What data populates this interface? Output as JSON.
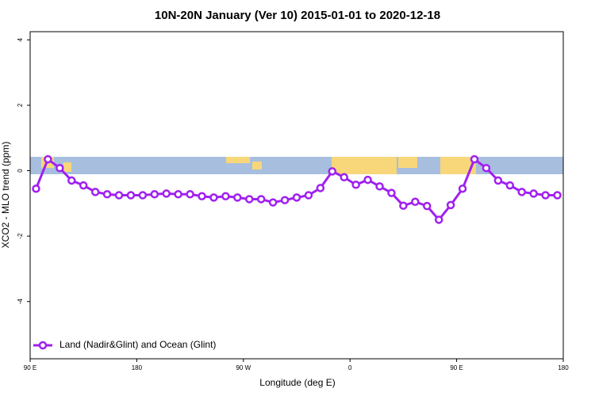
{
  "chart_data": {
    "type": "line",
    "title": "10N-20N January (Ver 10)   2015-01-01 to 2020-12-18",
    "x_label": "Longitude (deg E)",
    "y_label": "XCO2 - MLO trend (ppm)",
    "x": [
      95,
      105,
      115,
      125,
      135,
      145,
      155,
      165,
      175,
      185,
      195,
      205,
      215,
      225,
      235,
      245,
      255,
      265,
      275,
      285,
      295,
      305,
      315,
      325,
      335,
      345,
      355,
      365,
      375,
      385,
      395,
      405,
      415,
      425,
      435,
      445,
      455,
      465,
      475,
      485,
      495,
      505,
      515,
      525,
      535
    ],
    "series": [
      {
        "name": "Land (Nadir&Glint) and Ocean (Glint)",
        "color": "#a020f0",
        "values": [
          -0.55,
          0.35,
          0.08,
          -0.3,
          -0.45,
          -0.65,
          -0.72,
          -0.75,
          -0.75,
          -0.75,
          -0.72,
          -0.7,
          -0.72,
          -0.72,
          -0.78,
          -0.82,
          -0.78,
          -0.82,
          -0.87,
          -0.87,
          -0.97,
          -0.9,
          -0.82,
          -0.75,
          -0.53,
          -0.02,
          -0.2,
          -0.43,
          -0.28,
          -0.48,
          -0.68,
          -1.07,
          -0.95,
          -1.08,
          -1.5,
          -1.05,
          -0.55,
          0.35,
          0.08,
          -0.3,
          -0.45,
          -0.65,
          -0.7,
          -0.75,
          -0.75
        ]
      }
    ],
    "xlim": [
      90,
      540
    ],
    "xticks": [
      {
        "value": 90,
        "label": "90 E"
      },
      180,
      {
        "value": 270,
        "label": "90 W"
      },
      {
        "value": 360,
        "label": "0"
      },
      {
        "value": 450,
        "label": "90 E"
      },
      {
        "value": 540,
        "label": "180"
      }
    ],
    "ylim": [
      -5.75,
      4.25
    ],
    "yticks": [
      -4,
      -2,
      0,
      2,
      4
    ],
    "legend": "bottom-left"
  }
}
